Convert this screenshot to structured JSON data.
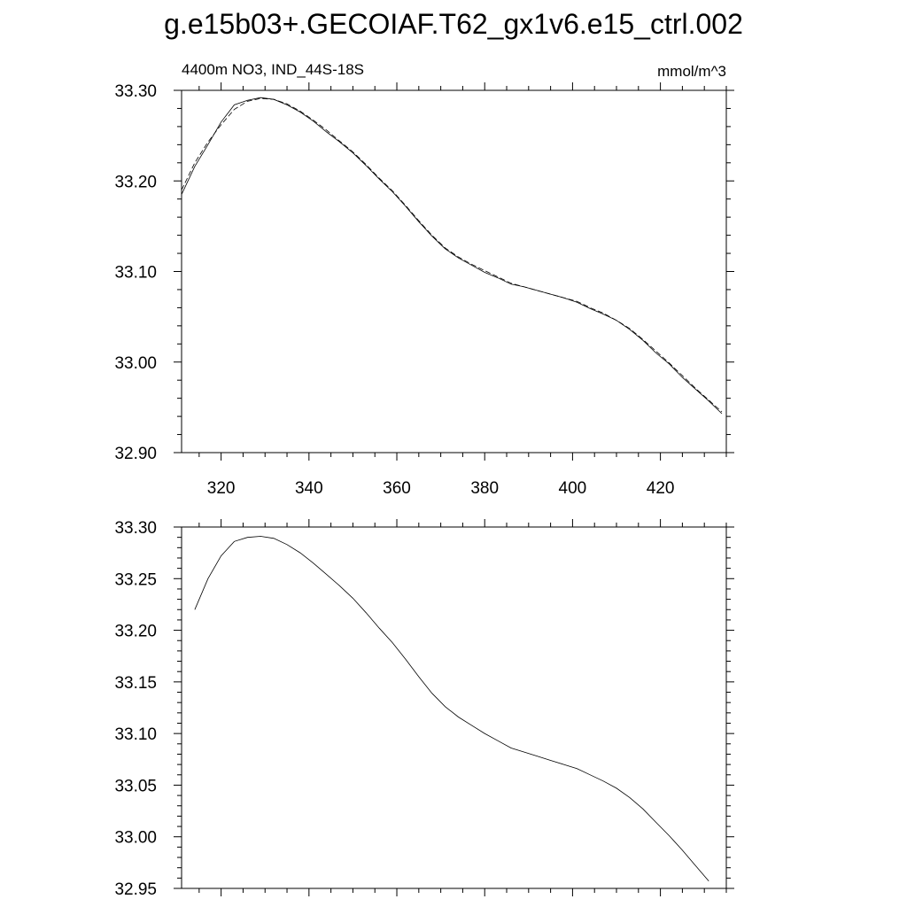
{
  "title": "g.e15b03+.GECOIAF.T62_gx1v6.e15_ctrl.002",
  "chart_data": [
    {
      "type": "line",
      "left_label": "4400m NO3, IND_44S-18S",
      "right_label": "mmol/m^3",
      "xlim": [
        311,
        435
      ],
      "ylim": [
        32.9,
        33.3
      ],
      "x_ticks": [
        320,
        340,
        360,
        380,
        400,
        420
      ],
      "x_tick_labels": [
        "320",
        "340",
        "360",
        "380",
        "400",
        "420"
      ],
      "y_ticks": [
        32.9,
        33.0,
        33.1,
        33.2,
        33.3
      ],
      "y_tick_labels": [
        "32.90",
        "33.00",
        "33.10",
        "33.20",
        "33.30"
      ],
      "series": [
        {
          "style": "solid",
          "x": [
            311,
            314,
            317,
            320,
            323,
            326,
            329,
            332,
            335,
            338,
            341,
            344,
            347,
            350,
            353,
            356,
            359,
            362,
            365,
            368,
            371,
            374,
            377,
            380,
            383,
            386,
            389,
            392,
            395,
            398,
            401,
            404,
            407,
            410,
            413,
            416,
            419,
            422,
            425,
            428,
            431,
            434
          ],
          "y": [
            33.185,
            33.216,
            33.24,
            33.265,
            33.284,
            33.289,
            33.292,
            33.29,
            33.284,
            33.276,
            33.266,
            33.254,
            33.243,
            33.231,
            33.217,
            33.202,
            33.188,
            33.172,
            33.155,
            33.139,
            33.125,
            33.115,
            33.107,
            33.099,
            33.093,
            33.086,
            33.083,
            33.079,
            33.075,
            33.071,
            33.066,
            33.059,
            33.053,
            33.046,
            33.036,
            33.024,
            33.01,
            32.998,
            32.983,
            32.97,
            32.957,
            32.943
          ]
        },
        {
          "style": "dashed",
          "x": [
            311,
            314,
            317,
            320,
            323,
            326,
            329,
            332,
            335,
            338,
            341,
            344,
            347,
            350,
            353,
            356,
            359,
            362,
            365,
            368,
            371,
            374,
            377,
            380,
            383,
            386,
            389,
            392,
            395,
            398,
            401,
            404,
            407,
            410,
            413,
            416,
            419,
            422,
            425,
            428,
            431,
            434
          ],
          "y": [
            33.19,
            33.22,
            33.243,
            33.262,
            33.279,
            33.288,
            33.291,
            33.29,
            33.285,
            33.277,
            33.267,
            33.256,
            33.244,
            33.232,
            33.218,
            33.203,
            33.189,
            33.173,
            33.156,
            33.14,
            33.126,
            33.116,
            33.108,
            33.101,
            33.094,
            33.087,
            33.083,
            33.079,
            33.075,
            33.071,
            33.067,
            33.06,
            33.054,
            33.046,
            33.037,
            33.025,
            33.012,
            32.999,
            32.985,
            32.971,
            32.958,
            32.945
          ]
        }
      ]
    },
    {
      "type": "line",
      "xlim": [
        311,
        435
      ],
      "ylim": [
        32.95,
        33.3
      ],
      "x_ticks": [
        320,
        340,
        360,
        380,
        400,
        420
      ],
      "y_ticks": [
        32.95,
        33.0,
        33.05,
        33.1,
        33.15,
        33.2,
        33.25,
        33.3
      ],
      "y_tick_labels": [
        "32.95",
        "33.00",
        "33.05",
        "33.10",
        "33.15",
        "33.20",
        "33.25",
        "33.30"
      ],
      "series": [
        {
          "style": "solid",
          "x": [
            314,
            317,
            320,
            323,
            326,
            329,
            332,
            335,
            338,
            341,
            344,
            347,
            350,
            353,
            356,
            359,
            362,
            365,
            368,
            371,
            374,
            377,
            380,
            383,
            386,
            389,
            392,
            395,
            398,
            401,
            404,
            407,
            410,
            413,
            416,
            419,
            422,
            425,
            428,
            431
          ],
          "y": [
            33.22,
            33.25,
            33.272,
            33.286,
            33.29,
            33.291,
            33.289,
            33.283,
            33.275,
            33.265,
            33.254,
            33.243,
            33.231,
            33.217,
            33.202,
            33.188,
            33.172,
            33.155,
            33.139,
            33.126,
            33.116,
            33.108,
            33.1,
            33.093,
            33.086,
            33.082,
            33.078,
            33.074,
            33.07,
            33.066,
            33.06,
            33.054,
            33.047,
            33.038,
            33.027,
            33.014,
            33.001,
            32.987,
            32.972,
            32.957
          ]
        }
      ]
    }
  ]
}
